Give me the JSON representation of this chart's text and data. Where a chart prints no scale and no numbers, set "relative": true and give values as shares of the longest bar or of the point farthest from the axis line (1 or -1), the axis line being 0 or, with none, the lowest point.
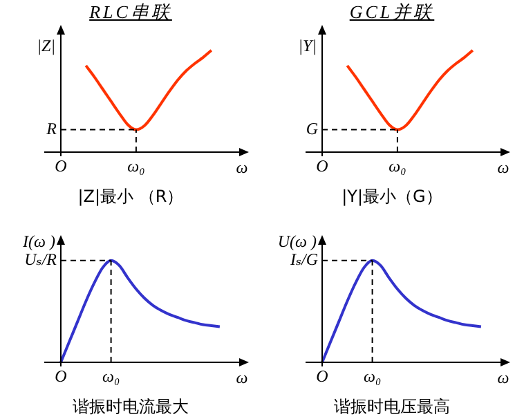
{
  "chart_data": [
    {
      "type": "line",
      "title": "RLC串联",
      "ylabel": "|Z|",
      "xlabel": "ω",
      "relative": true,
      "grid": false,
      "legend": false,
      "marker": "none",
      "categories": [
        "O",
        null,
        null,
        null,
        null,
        null,
        null,
        null,
        null,
        "ω₀",
        null,
        null,
        null,
        null,
        null,
        null,
        null,
        null,
        null,
        null,
        null
      ],
      "series": [
        {
          "color": "#ff3300",
          "values": [
            null,
            null,
            null,
            0.85,
            0.74,
            0.62,
            0.5,
            0.38,
            0.27,
            0.22,
            0.26,
            0.36,
            0.48,
            0.6,
            0.71,
            0.8,
            0.87,
            0.93,
            1.0,
            null,
            null
          ]
        }
      ],
      "ref_lines": [
        {
          "axis": "y",
          "value": 0.22,
          "label": "R",
          "line_style": "dashed"
        },
        {
          "axis": "x",
          "value": "ω₀",
          "line_style": "dashed"
        }
      ],
      "annotations": [
        "|Z|最小 （R）"
      ]
    },
    {
      "type": "line",
      "title": "GCL并联",
      "ylabel": "|Y|",
      "xlabel": "ω",
      "relative": true,
      "grid": false,
      "legend": false,
      "marker": "none",
      "categories": [
        "O",
        null,
        null,
        null,
        null,
        null,
        null,
        null,
        null,
        "ω₀",
        null,
        null,
        null,
        null,
        null,
        null,
        null,
        null,
        null,
        null,
        null
      ],
      "series": [
        {
          "color": "#ff3300",
          "values": [
            null,
            null,
            null,
            0.85,
            0.74,
            0.62,
            0.5,
            0.38,
            0.27,
            0.22,
            0.26,
            0.36,
            0.48,
            0.6,
            0.71,
            0.8,
            0.87,
            0.93,
            1.0,
            null,
            null
          ]
        }
      ],
      "ref_lines": [
        {
          "axis": "y",
          "value": 0.22,
          "label": "G",
          "line_style": "dashed"
        },
        {
          "axis": "x",
          "value": "ω₀",
          "line_style": "dashed"
        }
      ],
      "annotations": [
        "|Y|最小（G）"
      ]
    },
    {
      "type": "line",
      "ylabel": "I(ω )",
      "xlabel": "ω",
      "relative": true,
      "grid": false,
      "legend": false,
      "marker": "none",
      "categories": [
        "O",
        null,
        null,
        null,
        null,
        null,
        "ω₀",
        null,
        null,
        null,
        null,
        null,
        null,
        null,
        null,
        null,
        null,
        null,
        null,
        null,
        null
      ],
      "series": [
        {
          "color": "#3333cc",
          "values": [
            0,
            0.2,
            0.4,
            0.6,
            0.78,
            0.93,
            1.0,
            0.95,
            0.83,
            0.72,
            0.63,
            0.56,
            0.51,
            0.47,
            0.44,
            0.41,
            0.39,
            0.37,
            0.36,
            0.35,
            null
          ]
        }
      ],
      "ref_lines": [
        {
          "axis": "y",
          "value": 1.0,
          "label": "Uₛ/R",
          "line_style": "dashed"
        },
        {
          "axis": "x",
          "value": "ω₀",
          "line_style": "dashed"
        }
      ],
      "annotations": [
        "谐振时电流最大"
      ]
    },
    {
      "type": "line",
      "ylabel": "U(ω )",
      "xlabel": "ω",
      "relative": true,
      "grid": false,
      "legend": false,
      "marker": "none",
      "categories": [
        "O",
        null,
        null,
        null,
        null,
        null,
        "ω₀",
        null,
        null,
        null,
        null,
        null,
        null,
        null,
        null,
        null,
        null,
        null,
        null,
        null,
        null
      ],
      "series": [
        {
          "color": "#3333cc",
          "values": [
            0,
            0.2,
            0.4,
            0.6,
            0.78,
            0.93,
            1.0,
            0.95,
            0.83,
            0.72,
            0.63,
            0.56,
            0.51,
            0.47,
            0.44,
            0.41,
            0.39,
            0.37,
            0.36,
            0.35,
            null
          ]
        }
      ],
      "ref_lines": [
        {
          "axis": "y",
          "value": 1.0,
          "label": "Iₛ/G",
          "line_style": "dashed"
        },
        {
          "axis": "x",
          "value": "ω₀",
          "line_style": "dashed"
        }
      ],
      "annotations": [
        "谐振时电压最高"
      ]
    }
  ]
}
